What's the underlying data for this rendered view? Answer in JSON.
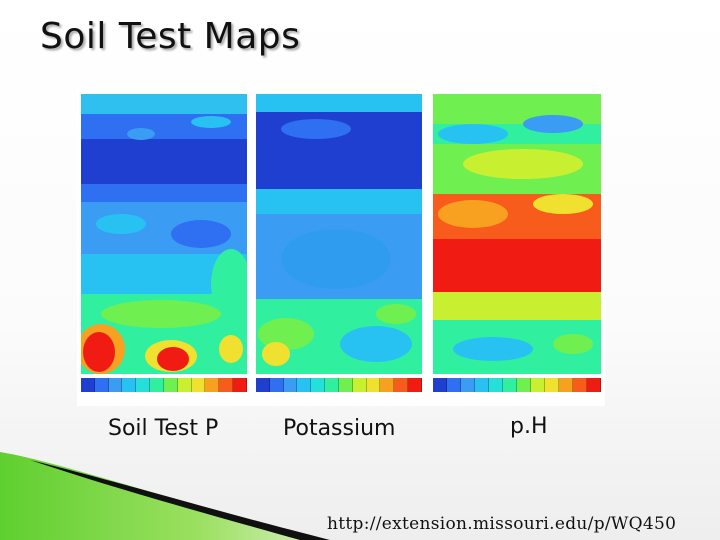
{
  "title": "Soil Test Maps",
  "maps": [
    {
      "label": "Soil Test P"
    },
    {
      "label": "Potassium"
    },
    {
      "label": "p.H"
    }
  ],
  "legend_colors": [
    "#1f3fd0",
    "#2f6ff2",
    "#3a9cf2",
    "#28c2f2",
    "#25e0d8",
    "#30f0a0",
    "#70f050",
    "#c8f030",
    "#f0e030",
    "#f8a020",
    "#f85c1c",
    "#f01c14"
  ],
  "source": "http://extension.missouri.edu/p/WQ450"
}
